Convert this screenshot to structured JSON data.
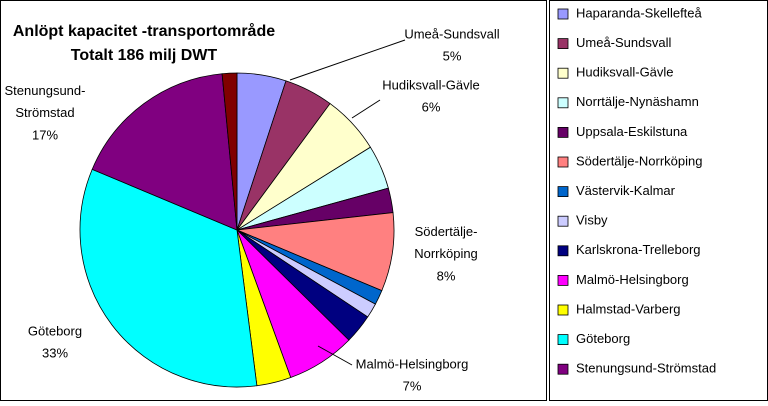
{
  "chart_data": {
    "type": "pie",
    "title": "Anlöpt kapacitet -transportområde",
    "subtitle": "Totalt 186 milj DWT",
    "categories": [
      "Haparanda-Skellefteå",
      "Umeå-Sundsvall",
      "Hudiksvall-Gävle",
      "Norrtälje-Nynäshamn",
      "Uppsala-Eskilstuna",
      "Södertälje-Norrköping",
      "Västervik-Kalmar",
      "Visby",
      "Karlskrona-Trelleborg",
      "Malmö-Helsingborg",
      "Halmstad-Varberg",
      "Göteborg",
      "Stenungsund-Strömstad",
      null
    ],
    "values": [
      5,
      5,
      6,
      4.5,
      2.5,
      8,
      1.5,
      1.5,
      3,
      7,
      3.5,
      33,
      17,
      1.5
    ],
    "value_labels": [
      null,
      "5%",
      "6%",
      null,
      null,
      "8%",
      null,
      null,
      null,
      "7%",
      null,
      "33%",
      "17%",
      null
    ],
    "colors": [
      "#9999ff",
      "#993366",
      "#ffffcc",
      "#ccffff",
      "#660066",
      "#ff8080",
      "#0066cc",
      "#ccccff",
      "#000080",
      "#ff00ff",
      "#ffff00",
      "#00ffff",
      "#800080",
      "#800000"
    ]
  }
}
